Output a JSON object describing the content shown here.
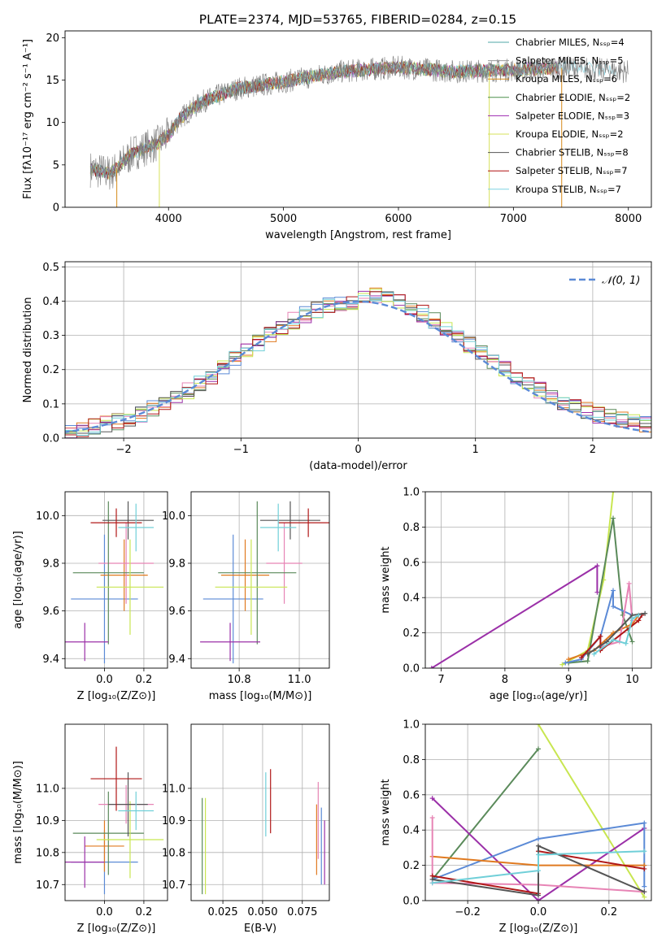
{
  "figure": {
    "title": "PLATE=2374, MJD=53765, FIBERID=0284, z=0.15"
  },
  "colors": {
    "c1": "#4fa7a7",
    "c2": "#9a9a9a",
    "c3": "#d68a1a",
    "c4": "#4d8f4d",
    "c5": "#9c27b0",
    "c6": "#d6e05a",
    "c7": "#555555",
    "c8": "#b01010",
    "c9": "#7fd4e3",
    "blue": "#5b8ad6",
    "orange": "#e07a20",
    "pink": "#e784b5",
    "green": "#5a8a5a",
    "purple": "#9b30a8",
    "lime": "#c8e650",
    "gray": "#555555",
    "red": "#b01818",
    "cyan": "#70cfd8"
  },
  "chart_data": [
    {
      "id": "spectrum",
      "type": "line",
      "xlabel": "wavelength [Angstrom, rest frame]",
      "ylabel": "Flux [fλ10⁻¹⁷ erg cm⁻² s⁻¹ A⁻¹]",
      "xlim": [
        3100,
        8200
      ],
      "ylim": [
        0,
        20.8
      ],
      "xticks": [
        "4000",
        "5000",
        "6000",
        "7000",
        "8000"
      ],
      "yticks": [
        "0",
        "5",
        "10",
        "15",
        "20"
      ],
      "legend_position": "upper-right",
      "legend": [
        "Chabrier MILES, Nₛₛₚ=4",
        "Salpeter MILES, Nₛₛₚ=5",
        "Kroupa MILES, Nₛₛₚ=6",
        "Chabrier ELODIE, Nₛₛₚ=2",
        "Salpeter ELODIE, Nₛₛₚ=3",
        "Kroupa ELODIE, Nₛₛₚ=2",
        "Chabrier STELIB, Nₛₛₚ=8",
        "Salpeter STELIB, Nₛₛₚ=7",
        "Kroupa STELIB, Nₛₛₚ=7"
      ],
      "continuum": [
        [
          3320,
          4.5
        ],
        [
          3500,
          4.0
        ],
        [
          3700,
          6.5
        ],
        [
          3900,
          7.5
        ],
        [
          4000,
          8.5
        ],
        [
          4100,
          10.5
        ],
        [
          4300,
          12.5
        ],
        [
          4600,
          14.0
        ],
        [
          5000,
          14.8
        ],
        [
          5500,
          16.0
        ],
        [
          6000,
          16.5
        ],
        [
          6500,
          16.0
        ],
        [
          7000,
          16.2
        ],
        [
          7500,
          16.5
        ],
        [
          8000,
          16.0
        ]
      ],
      "spikes": [
        [
          3550,
          0
        ],
        [
          3920,
          0
        ],
        [
          6790,
          0
        ],
        [
          7420,
          0
        ]
      ]
    },
    {
      "id": "residuals",
      "type": "histogram",
      "xlabel": "(data-model)/error",
      "ylabel": "Normed distribution",
      "xlim": [
        -2.5,
        2.5
      ],
      "ylim": [
        0,
        0.515
      ],
      "xticks": [
        "−2",
        "−1",
        "0",
        "1",
        "2"
      ],
      "yticks": [
        "0.0",
        "0.1",
        "0.2",
        "0.3",
        "0.4",
        "0.5"
      ],
      "grid": true,
      "legend": [
        "𝒩(0, 1)"
      ],
      "legend_position": "upper-right",
      "gauss_mean": 0,
      "gauss_sigma": 1
    },
    {
      "id": "age-vs-Z",
      "type": "scatter",
      "xlabel": "Z [log₁₀(Z/Z⊙)]",
      "ylabel": "age  [log₁₀(age/yr)]",
      "xlim": [
        -0.2,
        0.32
      ],
      "ylim": [
        9.36,
        10.1
      ],
      "xticks": [
        "0.0",
        "0.2"
      ],
      "yticks": [
        "9.4",
        "9.6",
        "9.8",
        "10.0"
      ],
      "xtickvals": [
        0.0,
        0.2
      ],
      "ytickvals": [
        9.4,
        9.6,
        9.8,
        10.0
      ],
      "grid": true,
      "points": [
        {
          "c": "blue",
          "x": 0.0,
          "xe": 0.17,
          "y": 9.65,
          "ye": 0.27
        },
        {
          "c": "orange",
          "x": 0.1,
          "xe": 0.12,
          "y": 9.75,
          "ye": 0.15
        },
        {
          "c": "pink",
          "x": 0.11,
          "xe": 0.14,
          "y": 9.8,
          "ye": 0.17
        },
        {
          "c": "green",
          "x": 0.02,
          "xe": 0.18,
          "y": 9.76,
          "ye": 0.3
        },
        {
          "c": "purple",
          "x": -0.1,
          "xe": 0.12,
          "y": 9.47,
          "ye": 0.08
        },
        {
          "c": "lime",
          "x": 0.13,
          "xe": 0.17,
          "y": 9.7,
          "ye": 0.2
        },
        {
          "c": "gray",
          "x": 0.12,
          "xe": 0.13,
          "y": 9.98,
          "ye": 0.08
        },
        {
          "c": "red",
          "x": 0.06,
          "xe": 0.13,
          "y": 9.97,
          "ye": 0.06
        },
        {
          "c": "cyan",
          "x": 0.16,
          "xe": 0.09,
          "y": 9.95,
          "ye": 0.1
        }
      ]
    },
    {
      "id": "age-vs-mass",
      "type": "scatter",
      "xlabel": "mass [log₁₀(M/M⊙)]",
      "xlim": [
        10.64,
        11.1
      ],
      "ylim": [
        9.36,
        10.1
      ],
      "xticks": [
        "10.8",
        "11.0"
      ],
      "yticks": [
        "9.4",
        "9.6",
        "9.8",
        "10.0"
      ],
      "xtickvals": [
        10.8,
        11.0
      ],
      "ytickvals": [
        9.4,
        9.6,
        9.8,
        10.0
      ],
      "grid": true,
      "points": [
        {
          "c": "blue",
          "x": 10.78,
          "xe": 0.1,
          "y": 9.65,
          "ye": 0.27
        },
        {
          "c": "orange",
          "x": 10.82,
          "xe": 0.08,
          "y": 9.75,
          "ye": 0.15
        },
        {
          "c": "pink",
          "x": 10.95,
          "xe": 0.06,
          "y": 9.8,
          "ye": 0.17
        },
        {
          "c": "green",
          "x": 10.86,
          "xe": 0.13,
          "y": 9.76,
          "ye": 0.3
        },
        {
          "c": "purple",
          "x": 10.77,
          "xe": 0.1,
          "y": 9.47,
          "ye": 0.08
        },
        {
          "c": "lime",
          "x": 10.84,
          "xe": 0.12,
          "y": 9.7,
          "ye": 0.2
        },
        {
          "c": "gray",
          "x": 10.97,
          "xe": 0.1,
          "y": 9.98,
          "ye": 0.08
        },
        {
          "c": "red",
          "x": 11.03,
          "xe": 0.1,
          "y": 9.97,
          "ye": 0.06
        },
        {
          "c": "cyan",
          "x": 10.93,
          "xe": 0.06,
          "y": 9.95,
          "ye": 0.1
        }
      ]
    },
    {
      "id": "weight-vs-age",
      "type": "line",
      "xlabel": "age  [log₁₀(age/yr)]",
      "ylabel": "mass weight",
      "xlim": [
        6.75,
        10.3
      ],
      "ylim": [
        0,
        1.0
      ],
      "xticks": [
        "7",
        "8",
        "9",
        "10"
      ],
      "yticks": [
        "0.0",
        "0.2",
        "0.4",
        "0.6",
        "0.8",
        "1.0"
      ],
      "xtickvals": [
        7,
        8,
        9,
        10
      ],
      "ytickvals": [
        0,
        0.2,
        0.4,
        0.6,
        0.8,
        1.0
      ],
      "grid": true,
      "series": [
        {
          "c": "purple",
          "pts": [
            [
              6.85,
              0.0
            ],
            [
              9.45,
              0.58
            ],
            [
              9.45,
              0.43
            ]
          ]
        },
        {
          "c": "lime",
          "pts": [
            [
              8.9,
              0.02
            ],
            [
              9.3,
              0.1
            ],
            [
              9.55,
              0.5
            ],
            [
              9.7,
              1.0
            ]
          ]
        },
        {
          "c": "green",
          "pts": [
            [
              9.0,
              0.03
            ],
            [
              9.3,
              0.04
            ],
            [
              9.7,
              0.85
            ],
            [
              9.85,
              0.3
            ],
            [
              10.0,
              0.15
            ]
          ]
        },
        {
          "c": "blue",
          "pts": [
            [
              8.95,
              0.03
            ],
            [
              9.2,
              0.05
            ],
            [
              9.5,
              0.18
            ],
            [
              9.7,
              0.44
            ],
            [
              9.7,
              0.35
            ],
            [
              10.0,
              0.3
            ]
          ]
        },
        {
          "c": "orange",
          "pts": [
            [
              9.0,
              0.05
            ],
            [
              9.4,
              0.1
            ],
            [
              9.7,
              0.2
            ],
            [
              10.0,
              0.25
            ],
            [
              10.1,
              0.3
            ]
          ]
        },
        {
          "c": "pink",
          "pts": [
            [
              9.5,
              0.12
            ],
            [
              9.8,
              0.15
            ],
            [
              9.95,
              0.48
            ],
            [
              10.0,
              0.27
            ]
          ]
        },
        {
          "c": "red",
          "pts": [
            [
              9.2,
              0.06
            ],
            [
              9.5,
              0.18
            ],
            [
              9.5,
              0.1
            ],
            [
              10.1,
              0.27
            ],
            [
              10.15,
              0.3
            ]
          ]
        },
        {
          "c": "gray",
          "pts": [
            [
              9.3,
              0.08
            ],
            [
              9.6,
              0.15
            ],
            [
              10.0,
              0.3
            ],
            [
              10.2,
              0.31
            ]
          ]
        },
        {
          "c": "cyan",
          "pts": [
            [
              9.4,
              0.08
            ],
            [
              9.7,
              0.16
            ],
            [
              9.9,
              0.14
            ],
            [
              10.0,
              0.28
            ],
            [
              10.1,
              0.3
            ]
          ]
        }
      ]
    },
    {
      "id": "mass-vs-Z",
      "type": "scatter",
      "xlabel": "Z [log₁₀(Z/Z⊙)]",
      "ylabel": "mass [log₁₀(M/M⊙)]",
      "xlim": [
        -0.2,
        0.32
      ],
      "ylim": [
        10.65,
        11.2
      ],
      "xticks": [
        "0.0",
        "0.2"
      ],
      "yticks": [
        "10.7",
        "10.8",
        "10.9",
        "11.0"
      ],
      "xtickvals": [
        0.0,
        0.2
      ],
      "ytickvals": [
        10.7,
        10.8,
        10.9,
        11.0
      ],
      "grid": true,
      "points": [
        {
          "c": "blue",
          "x": 0.0,
          "xe": 0.17,
          "y": 10.77,
          "ye": 0.1
        },
        {
          "c": "orange",
          "x": 0.0,
          "xe": 0.1,
          "y": 10.82,
          "ye": 0.08
        },
        {
          "c": "pink",
          "x": 0.11,
          "xe": 0.14,
          "y": 10.95,
          "ye": 0.06
        },
        {
          "c": "green",
          "x": 0.02,
          "xe": 0.18,
          "y": 10.86,
          "ye": 0.13
        },
        {
          "c": "purple",
          "x": -0.1,
          "xe": 0.1,
          "y": 10.77,
          "ye": 0.08
        },
        {
          "c": "lime",
          "x": 0.13,
          "xe": 0.17,
          "y": 10.84,
          "ye": 0.12
        },
        {
          "c": "gray",
          "x": 0.12,
          "xe": 0.1,
          "y": 10.95,
          "ye": 0.1
        },
        {
          "c": "red",
          "x": 0.06,
          "xe": 0.13,
          "y": 11.03,
          "ye": 0.1
        },
        {
          "c": "cyan",
          "x": 0.16,
          "xe": 0.09,
          "y": 10.93,
          "ye": 0.06
        }
      ]
    },
    {
      "id": "mass-vs-ebv",
      "type": "scatter",
      "xlabel": "E(B-V)",
      "xlim": [
        0.005,
        0.092
      ],
      "ylim": [
        10.65,
        11.2
      ],
      "xticks": [
        "0.025",
        "0.050",
        "0.075"
      ],
      "yticks": [
        "10.7",
        "10.8",
        "10.9",
        "11.0"
      ],
      "xtickvals": [
        0.025,
        0.05,
        0.075
      ],
      "ytickvals": [
        10.7,
        10.8,
        10.9,
        11.0
      ],
      "grid": true,
      "points": [
        {
          "c": "green",
          "x": 0.012,
          "xe": 0,
          "y": 10.82,
          "ye": 0.15
        },
        {
          "c": "lime",
          "x": 0.014,
          "xe": 0,
          "y": 10.82,
          "ye": 0.15
        },
        {
          "c": "cyan",
          "x": 0.052,
          "xe": 0,
          "y": 10.95,
          "ye": 0.1
        },
        {
          "c": "red",
          "x": 0.055,
          "xe": 0,
          "y": 10.96,
          "ye": 0.1
        },
        {
          "c": "orange",
          "x": 0.084,
          "xe": 0,
          "y": 10.84,
          "ye": 0.11
        },
        {
          "c": "pink",
          "x": 0.085,
          "xe": 0,
          "y": 10.9,
          "ye": 0.12
        },
        {
          "c": "blue",
          "x": 0.087,
          "xe": 0,
          "y": 10.82,
          "ye": 0.12
        },
        {
          "c": "purple",
          "x": 0.089,
          "xe": 0,
          "y": 10.8,
          "ye": 0.1
        }
      ]
    },
    {
      "id": "weight-vs-Z",
      "type": "line",
      "xlabel": "Z [log₁₀(Z/Z⊙)]",
      "ylabel": "mass weight",
      "xlim": [
        -0.32,
        0.32
      ],
      "ylim": [
        0,
        1.0
      ],
      "xticks": [
        "−0.2",
        "0.0",
        "0.2"
      ],
      "yticks": [
        "0.0",
        "0.2",
        "0.4",
        "0.6",
        "0.8",
        "1.0"
      ],
      "xtickvals": [
        -0.2,
        0.0,
        0.2
      ],
      "ytickvals": [
        0,
        0.2,
        0.4,
        0.6,
        0.8,
        1.0
      ],
      "grid": true,
      "series": [
        {
          "c": "green",
          "pts": [
            [
              -0.3,
              0.12
            ],
            [
              0.0,
              0.86
            ]
          ]
        },
        {
          "c": "lime",
          "pts": [
            [
              0.0,
              1.0
            ],
            [
              0.3,
              0.02
            ]
          ]
        },
        {
          "c": "purple",
          "pts": [
            [
              -0.3,
              0.58
            ],
            [
              0.0,
              0.0
            ],
            [
              0.3,
              0.41
            ]
          ]
        },
        {
          "c": "blue",
          "pts": [
            [
              -0.3,
              0.12
            ],
            [
              0.0,
              0.35
            ],
            [
              0.3,
              0.44
            ],
            [
              0.3,
              0.08
            ]
          ]
        },
        {
          "c": "orange",
          "pts": [
            [
              -0.3,
              0.25
            ],
            [
              0.0,
              0.2
            ],
            [
              0.3,
              0.2
            ]
          ]
        },
        {
          "c": "pink",
          "pts": [
            [
              -0.3,
              0.47
            ],
            [
              -0.3,
              0.1
            ],
            [
              0.0,
              0.09
            ],
            [
              0.3,
              0.05
            ]
          ]
        },
        {
          "c": "red",
          "pts": [
            [
              -0.3,
              0.14
            ],
            [
              0.0,
              0.04
            ],
            [
              0.0,
              0.28
            ],
            [
              0.3,
              0.18
            ]
          ]
        },
        {
          "c": "gray",
          "pts": [
            [
              -0.3,
              0.12
            ],
            [
              0.0,
              0.03
            ],
            [
              0.0,
              0.31
            ],
            [
              0.3,
              0.05
            ]
          ]
        },
        {
          "c": "cyan",
          "pts": [
            [
              -0.3,
              0.1
            ],
            [
              0.0,
              0.17
            ],
            [
              0.0,
              0.26
            ],
            [
              0.3,
              0.28
            ]
          ]
        }
      ]
    }
  ]
}
